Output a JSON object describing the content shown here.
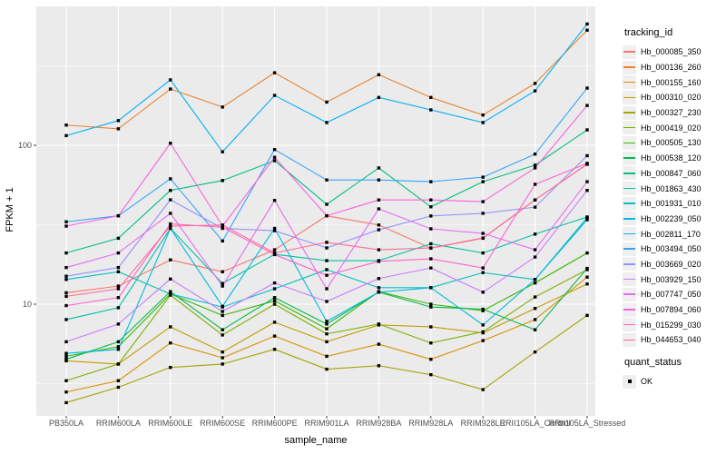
{
  "colors": {
    "panel": "#EBEBEB",
    "grid": "#FFFFFF",
    "tick_text": "#4D4D4D",
    "axis_text": "#000000",
    "marker": "#000000",
    "legend_key_bg": "#EFEFEF"
  },
  "legend": {
    "tracking_title": "tracking_id",
    "quant_title": "quant_status",
    "quant_items": [
      {
        "label": "OK"
      }
    ]
  },
  "chart_data": {
    "type": "line",
    "title": "",
    "xlabel": "sample_name",
    "ylabel": "FPKM + 1",
    "y_scale": "log10",
    "ylim": [
      2.0,
      748
    ],
    "y_ticks": [
      100,
      10
    ],
    "y_minor_ticks": [
      3.162,
      31.62,
      316.2
    ],
    "grid": "on",
    "legend_position": "right",
    "marker": "black-square",
    "categories": [
      "PB350LA",
      "RRIM600LA",
      "RRIM600LE",
      "RRIM600SE",
      "RRIM600PE",
      "RRIM901LA",
      "RRIM928BA",
      "RRIM928LA",
      "RRIM928LE",
      "RRII105LA_Control",
      "RRII105LA_Stressed"
    ],
    "series": [
      {
        "name": "Hb_000085_350",
        "color": "#F8766D",
        "values": [
          11.8,
          13,
          19,
          16,
          22,
          36,
          31.5,
          22.5,
          26,
          45.3,
          76
        ]
      },
      {
        "name": "Hb_000136_260",
        "color": "#EA8331",
        "values": [
          134,
          127,
          226,
          174,
          286,
          187,
          278,
          200,
          155,
          245,
          530
        ]
      },
      {
        "name": "Hb_000155_160",
        "color": "#D89000",
        "values": [
          2.8,
          3.3,
          5.7,
          4.6,
          6.3,
          4.7,
          5.6,
          4.5,
          5.9,
          8,
          14.8
        ]
      },
      {
        "name": "Hb_000310_020",
        "color": "#C09B00",
        "values": [
          4.4,
          4.2,
          7.2,
          5,
          7.7,
          5.8,
          7.4,
          7.2,
          6.6,
          9.4,
          13.4
        ]
      },
      {
        "name": "Hb_000327_230",
        "color": "#A3A500",
        "values": [
          2.4,
          3,
          4,
          4.2,
          5.2,
          3.9,
          4.1,
          3.6,
          2.9,
          5,
          8.5
        ]
      },
      {
        "name": "Hb_000419_020",
        "color": "#7CAE00",
        "values": [
          3.3,
          4.2,
          11.4,
          6.4,
          10,
          6.5,
          7.5,
          5.7,
          6.7,
          11.1,
          16.5
        ]
      },
      {
        "name": "Hb_000505_130",
        "color": "#39B600",
        "values": [
          4.7,
          5.4,
          11.6,
          8.5,
          10.5,
          7,
          12,
          10,
          9.1,
          13.6,
          21
        ]
      },
      {
        "name": "Hb_000538_120",
        "color": "#00BB4E",
        "values": [
          4.5,
          5.8,
          12,
          6.9,
          11,
          7.5,
          11.9,
          9.6,
          9.3,
          6.9,
          16.8
        ]
      },
      {
        "name": "Hb_000847_060",
        "color": "#00BF7D",
        "values": [
          21,
          26,
          52,
          60,
          80,
          42.5,
          72,
          41,
          59,
          75,
          125
        ]
      },
      {
        "name": "Hb_001863_430",
        "color": "#00C1A3",
        "values": [
          8,
          9.5,
          30,
          13.5,
          20.6,
          18.8,
          18.8,
          24,
          21,
          27.6,
          35.4
        ]
      },
      {
        "name": "Hb_001931_010",
        "color": "#00BFC4",
        "values": [
          14.3,
          16,
          11.6,
          9.6,
          12.5,
          16.5,
          12.7,
          12.7,
          15.8,
          14.3,
          35
        ]
      },
      {
        "name": "Hb_002239_050",
        "color": "#00BAE0",
        "values": [
          4.9,
          5.2,
          30,
          9.7,
          30,
          7.8,
          11.9,
          12.7,
          7.4,
          14.3,
          34
        ]
      },
      {
        "name": "Hb_002811_170",
        "color": "#00B0F6",
        "values": [
          115,
          143,
          258,
          91,
          206,
          139,
          200,
          167,
          139,
          220,
          580
        ]
      },
      {
        "name": "Hb_003494_050",
        "color": "#35A2FF",
        "values": [
          33,
          36,
          61.5,
          25,
          94,
          60.5,
          60.5,
          59,
          63,
          88,
          229
        ]
      },
      {
        "name": "Hb_003669_020",
        "color": "#9590FF",
        "values": [
          15,
          17,
          45.4,
          30,
          29,
          22.6,
          29.4,
          35.9,
          37.3,
          40.8,
          86
        ]
      },
      {
        "name": "Hb_003929_150",
        "color": "#C77CFF",
        "values": [
          5.8,
          7.5,
          14.4,
          9,
          13.6,
          10.4,
          14.5,
          16.9,
          11.9,
          19.8,
          52
        ]
      },
      {
        "name": "Hb_007747_050",
        "color": "#E76BF3",
        "values": [
          17,
          21,
          37.3,
          13,
          45,
          12.5,
          39.8,
          29.8,
          27.9,
          22,
          59
        ]
      },
      {
        "name": "Hb_007894_060",
        "color": "#FA62DB",
        "values": [
          31,
          36,
          103,
          31,
          84,
          36,
          45.3,
          45.3,
          44.2,
          72,
          178
        ]
      },
      {
        "name": "Hb_015299_030",
        "color": "#FF61CC",
        "values": [
          9.8,
          11,
          32,
          30.5,
          20.5,
          15.2,
          18.6,
          19.3,
          16.9,
          56.8,
          77
        ]
      },
      {
        "name": "Hb_044653_040",
        "color": "#FF6A98",
        "values": [
          11.2,
          12.5,
          31,
          31.5,
          21,
          24.5,
          22,
          22.6,
          26.1,
          45.3,
          76
        ]
      }
    ]
  }
}
